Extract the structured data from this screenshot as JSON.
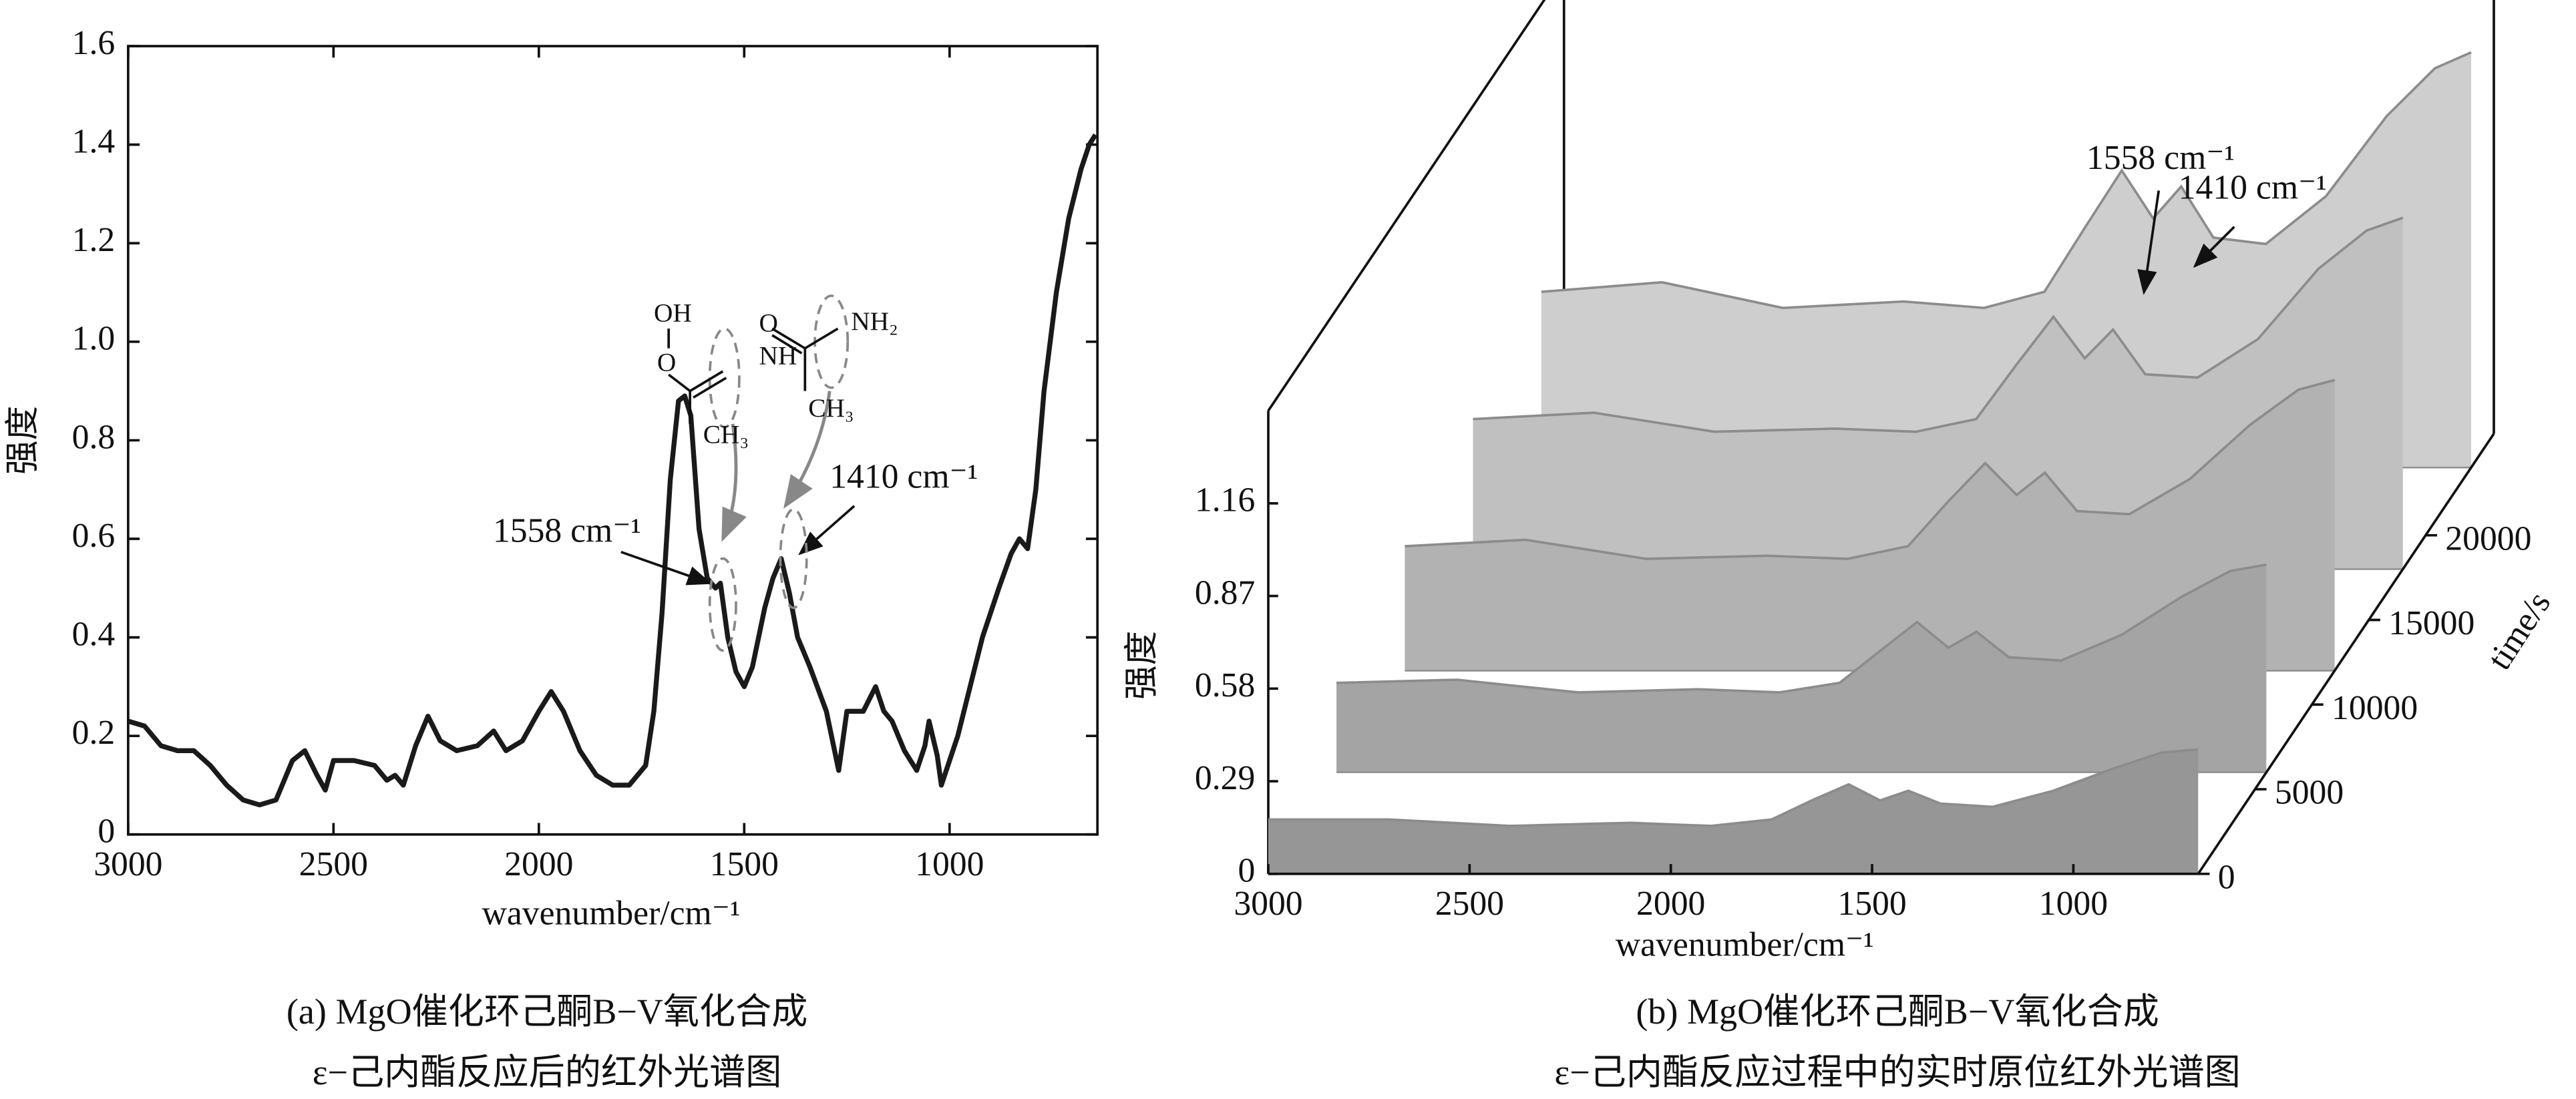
{
  "chart_data": [
    {
      "type": "line",
      "x_label": "wavenumber/cm⁻¹",
      "y_label": "强度",
      "color": "#1a1a1a",
      "caption": [
        "(a) MgO催化环己酮B−V氧化合成",
        "ε−己内酯反应后的红外光谱图"
      ],
      "xlim": [
        3000,
        640
      ],
      "ylim": [
        0,
        1.6
      ],
      "xticks": [
        3000,
        2500,
        2000,
        1500,
        1000
      ],
      "yticks": [
        0,
        0.2,
        0.4,
        0.6,
        0.8,
        {
          "value": 1,
          "label": "1.0"
        },
        1.2,
        1.4,
        1.6
      ],
      "x": [
        3000,
        2960,
        2920,
        2880,
        2840,
        2800,
        2760,
        2720,
        2680,
        2640,
        2600,
        2570,
        2540,
        2520,
        2500,
        2450,
        2400,
        2370,
        2350,
        2330,
        2300,
        2270,
        2240,
        2200,
        2150,
        2110,
        2080,
        2040,
        2000,
        1970,
        1940,
        1900,
        1860,
        1820,
        1780,
        1740,
        1720,
        1700,
        1680,
        1660,
        1645,
        1630,
        1610,
        1590,
        1570,
        1558,
        1540,
        1520,
        1500,
        1480,
        1450,
        1430,
        1410,
        1390,
        1370,
        1340,
        1300,
        1270,
        1250,
        1210,
        1180,
        1160,
        1140,
        1110,
        1080,
        1060,
        1050,
        1030,
        1020,
        1000,
        980,
        950,
        920,
        880,
        850,
        830,
        810,
        790,
        770,
        740,
        710,
        680,
        660,
        645
      ],
      "values": [
        0.23,
        0.22,
        0.18,
        0.17,
        0.17,
        0.14,
        0.1,
        0.07,
        0.06,
        0.07,
        0.15,
        0.17,
        0.12,
        0.09,
        0.15,
        0.15,
        0.14,
        0.11,
        0.12,
        0.1,
        0.18,
        0.24,
        0.19,
        0.17,
        0.18,
        0.21,
        0.17,
        0.19,
        0.25,
        0.29,
        0.25,
        0.17,
        0.12,
        0.1,
        0.1,
        0.14,
        0.25,
        0.45,
        0.72,
        0.88,
        0.89,
        0.85,
        0.62,
        0.52,
        0.5,
        0.51,
        0.4,
        0.33,
        0.3,
        0.34,
        0.46,
        0.52,
        0.56,
        0.49,
        0.4,
        0.34,
        0.25,
        0.13,
        0.25,
        0.25,
        0.3,
        0.25,
        0.23,
        0.17,
        0.13,
        0.18,
        0.23,
        0.16,
        0.1,
        0.15,
        0.2,
        0.3,
        0.4,
        0.5,
        0.57,
        0.6,
        0.58,
        0.7,
        0.9,
        1.1,
        1.25,
        1.35,
        1.4,
        1.42
      ],
      "annotations": [
        "1558 cm⁻¹",
        "1410 cm⁻¹"
      ],
      "structure_labels": [
        "OH",
        "O",
        "NH",
        "CH₃",
        "O",
        "NH₂",
        "CH₃"
      ]
    },
    {
      "type": "surface",
      "x_label": "wavenumber/cm⁻¹",
      "y_label": "强度",
      "z_label": "time/s",
      "color": "#8c8c8c",
      "caption": [
        "(b) MgO催化环己酮B−V氧化合成",
        "ε−己内酯反应过程中的实时原位红外光谱图"
      ],
      "xlim": [
        3000,
        690
      ],
      "ylim": [
        0,
        1.45
      ],
      "zlim": [
        0,
        26000
      ],
      "xticks": [
        3000,
        2500,
        2000,
        1500,
        1000
      ],
      "yticks": [
        0,
        0.29,
        0.58,
        0.87,
        1.16
      ],
      "zticks": [
        0,
        5000,
        10000,
        15000,
        20000
      ],
      "x": [
        3000,
        2700,
        2400,
        2100,
        1900,
        1750,
        1650,
        1558,
        1480,
        1410,
        1330,
        1200,
        1050,
        900,
        780,
        690
      ],
      "times": [
        0,
        6000,
        12000,
        18000,
        24000
      ],
      "values": [
        [
          0.17,
          0.17,
          0.15,
          0.16,
          0.15,
          0.17,
          0.23,
          0.28,
          0.23,
          0.26,
          0.22,
          0.21,
          0.26,
          0.33,
          0.38,
          0.39
        ],
        [
          0.28,
          0.29,
          0.25,
          0.26,
          0.25,
          0.28,
          0.38,
          0.47,
          0.39,
          0.44,
          0.36,
          0.35,
          0.43,
          0.55,
          0.63,
          0.65
        ],
        [
          0.39,
          0.41,
          0.35,
          0.36,
          0.35,
          0.39,
          0.53,
          0.65,
          0.55,
          0.62,
          0.5,
          0.49,
          0.6,
          0.77,
          0.88,
          0.91
        ],
        [
          0.47,
          0.49,
          0.43,
          0.44,
          0.43,
          0.47,
          0.64,
          0.79,
          0.66,
          0.75,
          0.61,
          0.6,
          0.72,
          0.94,
          1.06,
          1.1
        ],
        [
          0.55,
          0.58,
          0.5,
          0.52,
          0.5,
          0.55,
          0.75,
          0.93,
          0.78,
          0.88,
          0.72,
          0.7,
          0.85,
          1.1,
          1.25,
          1.3
        ]
      ],
      "annotations": [
        "1558 cm⁻¹",
        "1410 cm⁻¹"
      ]
    }
  ]
}
